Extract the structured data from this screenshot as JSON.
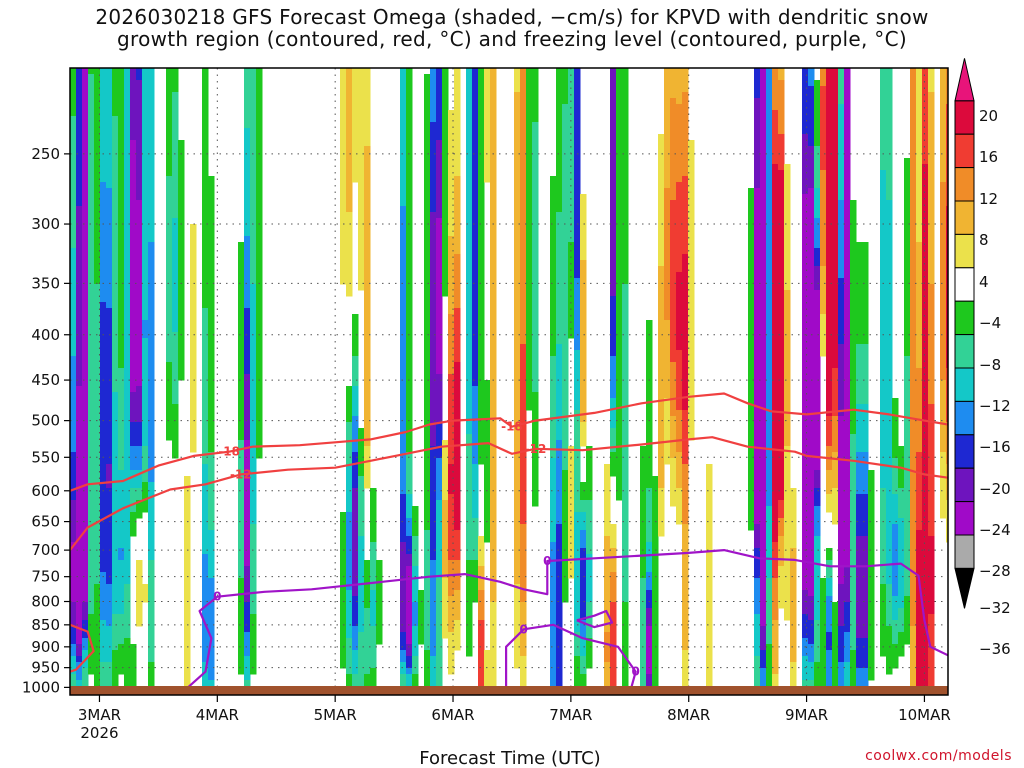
{
  "chart_data": {
    "type": "heatmap",
    "title_line1": "2026030218 GFS Forecast Omega (shaded, −cm/s) for KPVD with dendritic snow",
    "title_line2": "growth region (contoured, red, °C) and freezing level (contoured, purple, °C)",
    "xlabel": "Forecast Time (UTC)",
    "ylabel": "",
    "credit": "coolwx.com/models",
    "x_ticks": [
      "3MAR",
      "4MAR",
      "5MAR",
      "6MAR",
      "7MAR",
      "8MAR",
      "9MAR",
      "10MAR"
    ],
    "x_year": "2026",
    "x_range_days": [
      2.75,
      10.2
    ],
    "y_ticks": [
      250,
      300,
      350,
      400,
      450,
      500,
      550,
      600,
      650,
      700,
      750,
      800,
      850,
      900,
      950,
      1000
    ],
    "y_range_hpa": [
      200,
      1020
    ],
    "colorbar": {
      "levels": [
        "20",
        "16",
        "12",
        "8",
        "4",
        "−4",
        "−8",
        "−12",
        "−16",
        "−20",
        "−24",
        "−28",
        "−32",
        "−36"
      ],
      "colors": [
        "#dc0a3c",
        "#f03c32",
        "#f08c28",
        "#f0b432",
        "#ebe14b",
        "#ffffff",
        "#1ec81e",
        "#32d296",
        "#14c8c8",
        "#1e8cf0",
        "#1e28d2",
        "#6e14be",
        "#a00ac8",
        "#aaaaaa"
      ],
      "top_arrow": "#e8147a",
      "bottom_arrow": "#000000"
    },
    "contours": [
      {
        "name": "dgz-top",
        "label": "-18",
        "color": "#f04040",
        "points": [
          [
            2.75,
            600
          ],
          [
            2.9,
            590
          ],
          [
            3.2,
            585
          ],
          [
            3.5,
            562
          ],
          [
            3.8,
            548
          ],
          [
            4.1,
            542
          ],
          [
            4.3,
            535
          ],
          [
            4.7,
            533
          ],
          [
            5.0,
            529
          ],
          [
            5.3,
            525
          ],
          [
            5.6,
            515
          ],
          [
            5.8,
            505
          ],
          [
            6.0,
            500
          ],
          [
            6.4,
            497
          ],
          [
            6.5,
            508
          ],
          [
            6.7,
            500
          ],
          [
            7.2,
            490
          ],
          [
            7.6,
            478
          ],
          [
            8.0,
            470
          ],
          [
            8.3,
            466
          ],
          [
            8.5,
            478
          ],
          [
            8.7,
            488
          ],
          [
            9.0,
            492
          ],
          [
            9.4,
            486
          ],
          [
            9.7,
            492
          ],
          [
            10.0,
            500
          ],
          [
            10.2,
            505
          ]
        ]
      },
      {
        "name": "dgz-bottom",
        "label": "-12",
        "color": "#f04040",
        "points": [
          [
            2.75,
            700
          ],
          [
            2.9,
            660
          ],
          [
            3.2,
            628
          ],
          [
            3.6,
            598
          ],
          [
            3.9,
            590
          ],
          [
            4.2,
            575
          ],
          [
            4.6,
            568
          ],
          [
            5.0,
            565
          ],
          [
            5.3,
            555
          ],
          [
            5.6,
            545
          ],
          [
            5.9,
            535
          ],
          [
            6.3,
            530
          ],
          [
            6.5,
            545
          ],
          [
            6.7,
            538
          ],
          [
            7.1,
            540
          ],
          [
            7.6,
            532
          ],
          [
            8.0,
            525
          ],
          [
            8.2,
            522
          ],
          [
            8.5,
            535
          ],
          [
            8.9,
            542
          ],
          [
            9.0,
            548
          ],
          [
            9.4,
            555
          ],
          [
            9.8,
            565
          ],
          [
            10.0,
            575
          ],
          [
            10.2,
            580
          ]
        ]
      },
      {
        "name": "dgz-lowlevel",
        "label": "",
        "color": "#f04040",
        "points": [
          [
            2.75,
            850
          ],
          [
            2.9,
            865
          ],
          [
            2.95,
            910
          ],
          [
            2.8,
            955
          ],
          [
            2.75,
            960
          ]
        ]
      },
      {
        "name": "freezing-level",
        "label": "0",
        "color": "#a014c8",
        "points": [
          [
            3.6,
            1020
          ],
          [
            3.75,
            1000
          ],
          [
            3.9,
            960
          ],
          [
            3.95,
            880
          ],
          [
            3.85,
            820
          ],
          [
            4.0,
            790
          ],
          [
            4.4,
            780
          ],
          [
            4.8,
            775
          ],
          [
            5.0,
            770
          ],
          [
            5.4,
            760
          ],
          [
            5.8,
            750
          ],
          [
            6.1,
            745
          ],
          [
            6.4,
            760
          ],
          [
            6.6,
            775
          ],
          [
            6.8,
            785
          ],
          [
            6.8,
            720
          ],
          [
            7.2,
            715
          ],
          [
            7.6,
            710
          ],
          [
            8.0,
            705
          ],
          [
            8.3,
            700
          ],
          [
            8.6,
            715
          ],
          [
            8.9,
            718
          ],
          [
            9.2,
            730
          ],
          [
            9.5,
            730
          ],
          [
            9.8,
            725
          ],
          [
            9.95,
            748
          ],
          [
            10.0,
            840
          ],
          [
            10.05,
            900
          ],
          [
            10.2,
            920
          ]
        ]
      },
      {
        "name": "freezing-level-loop",
        "label": "0",
        "color": "#a014c8",
        "points": [
          [
            6.45,
            1010
          ],
          [
            6.45,
            900
          ],
          [
            6.6,
            860
          ],
          [
            6.85,
            850
          ],
          [
            7.1,
            880
          ],
          [
            7.4,
            900
          ],
          [
            7.55,
            960
          ],
          [
            7.5,
            1015
          ],
          [
            7.2,
            1020
          ],
          [
            6.8,
            1015
          ],
          [
            6.45,
            1010
          ]
        ]
      },
      {
        "name": "freezing-level-small",
        "label": "",
        "color": "#a014c8",
        "points": [
          [
            7.05,
            840
          ],
          [
            7.2,
            830
          ],
          [
            7.3,
            820
          ],
          [
            7.35,
            845
          ],
          [
            7.2,
            855
          ],
          [
            7.05,
            840
          ]
        ]
      }
    ]
  }
}
